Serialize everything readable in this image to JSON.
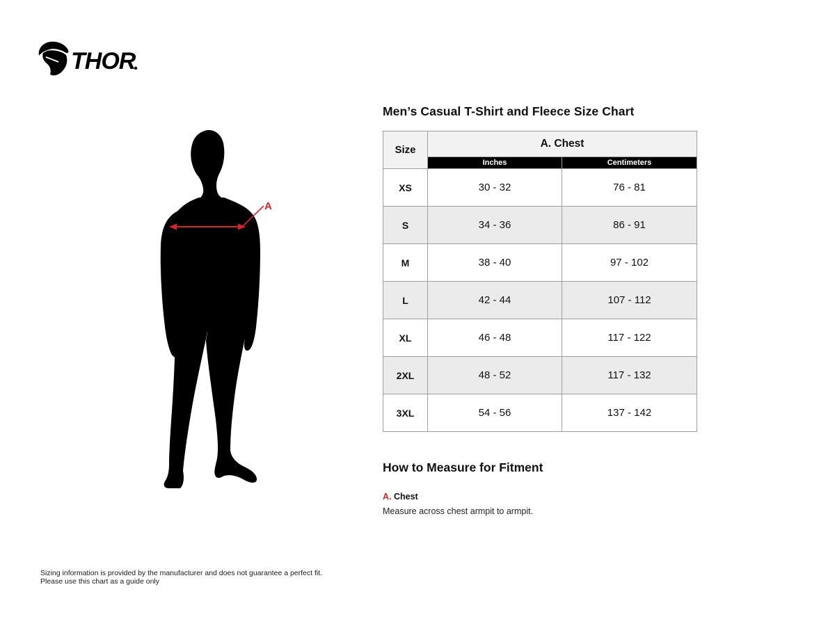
{
  "logo": {
    "brand": "THOR",
    "icon": "thor-goat-icon"
  },
  "title": "Men’s Casual T-Shirt and Fleece Size Chart",
  "figure": {
    "measure_label": "A"
  },
  "size_chart": {
    "header": {
      "size": "Size",
      "group": "A. Chest",
      "units": [
        "Inches",
        "Centimeters"
      ]
    },
    "rows": [
      {
        "size": "XS",
        "inches": "30 - 32",
        "cm": "76 - 81"
      },
      {
        "size": "S",
        "inches": "34 - 36",
        "cm": "86 - 91"
      },
      {
        "size": "M",
        "inches": "38 - 40",
        "cm": "97 - 102"
      },
      {
        "size": "L",
        "inches": "42 - 44",
        "cm": "107 - 112"
      },
      {
        "size": "XL",
        "inches": "46 - 48",
        "cm": "117 - 122"
      },
      {
        "size": "2XL",
        "inches": "48 - 52",
        "cm": "117 - 132"
      },
      {
        "size": "3XL",
        "inches": "54 - 56",
        "cm": "137 - 142"
      }
    ]
  },
  "how_to_measure": {
    "heading": "How to Measure for Fitment",
    "items": [
      {
        "key": "A.",
        "name": "Chest",
        "description": "Measure across chest armpit to armpit."
      }
    ]
  },
  "footer": {
    "line1": "Sizing information is provided by the manufacturer and does not guarantee a perfect fit.",
    "line2": "Please use this chart as a guide only"
  },
  "colors": {
    "accent_red": "#d9232a",
    "header_bg": "#f2f2f2",
    "row_alt_bg": "#ebebeb",
    "unit_bar_bg": "#000000",
    "table_border": "#9f9f9f",
    "silhouette": "#000000"
  }
}
